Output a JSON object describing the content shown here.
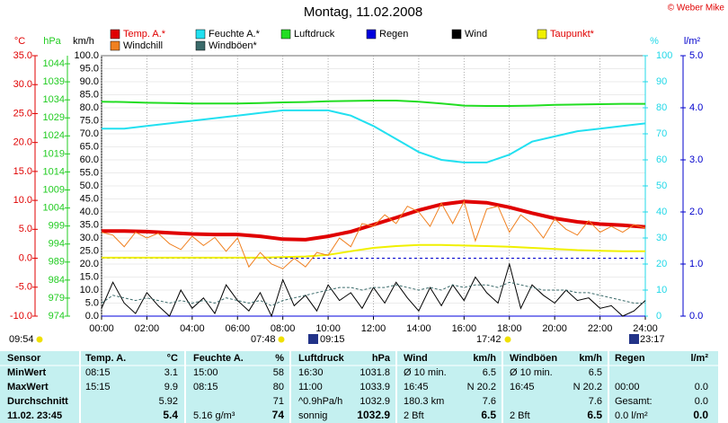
{
  "chart_data": {
    "type": "line",
    "title": "Montag, 11.02.2008",
    "copyright": "© Weber Mike",
    "xlim": [
      0,
      24
    ],
    "xticks": [
      {
        "value": 0,
        "label": "00:00"
      },
      {
        "value": 2,
        "label": "02:00"
      },
      {
        "value": 4,
        "label": "04:00"
      },
      {
        "value": 6,
        "label": "06:00"
      },
      {
        "value": 8,
        "label": "08:00"
      },
      {
        "value": 10,
        "label": "10:00"
      },
      {
        "value": 12,
        "label": "12:00"
      },
      {
        "value": 14,
        "label": "14:00"
      },
      {
        "value": 16,
        "label": "16:00"
      },
      {
        "value": 18,
        "label": "18:00"
      },
      {
        "value": 20,
        "label": "20:00"
      },
      {
        "value": 22,
        "label": "22:00"
      },
      {
        "value": 24,
        "label": "24:00"
      }
    ],
    "x": [
      0,
      1,
      2,
      3,
      4,
      5,
      6,
      7,
      8,
      9,
      10,
      11,
      12,
      13,
      14,
      15,
      16,
      17,
      18,
      19,
      20,
      21,
      22,
      23,
      24
    ],
    "grid": true,
    "axes": {
      "temp": {
        "label": "°C",
        "color": "#e00000",
        "ylim": [
          -10,
          35
        ],
        "yticks": [
          {
            "value": 35,
            "label": "35.0"
          },
          {
            "value": 30,
            "label": "30.0"
          },
          {
            "value": 25,
            "label": "25.0"
          },
          {
            "value": 20,
            "label": "20.0"
          },
          {
            "value": 15,
            "label": "15.0"
          },
          {
            "value": 10,
            "label": "10.0"
          },
          {
            "value": 5,
            "label": "5.0"
          },
          {
            "value": 0,
            "label": "0.0"
          },
          {
            "value": -5,
            "label": "-5.0"
          },
          {
            "value": -10,
            "label": "-10.0"
          }
        ]
      },
      "press": {
        "label": "hPa",
        "color": "#22cc22",
        "ylim": [
          974,
          1046.25
        ],
        "yticks": [
          1044,
          1039,
          1034,
          1029,
          1024,
          1019,
          1014,
          1009,
          1004,
          999,
          994,
          989,
          984,
          979,
          974
        ]
      },
      "wind": {
        "label": "km/h",
        "color": "#000000",
        "ylim": [
          0,
          100
        ],
        "yticks": [
          {
            "value": 100,
            "label": "100.0"
          },
          {
            "value": 95,
            "label": "95.0"
          },
          {
            "value": 90,
            "label": "90.0"
          },
          {
            "value": 85,
            "label": "85.0"
          },
          {
            "value": 80,
            "label": "80.0"
          },
          {
            "value": 75,
            "label": "75.0"
          },
          {
            "value": 70,
            "label": "70.0"
          },
          {
            "value": 65,
            "label": "65.0"
          },
          {
            "value": 60,
            "label": "60.0"
          },
          {
            "value": 55,
            "label": "55.0"
          },
          {
            "value": 50,
            "label": "50.0"
          },
          {
            "value": 45,
            "label": "45.0"
          },
          {
            "value": 40,
            "label": "40.0"
          },
          {
            "value": 35,
            "label": "35.0"
          },
          {
            "value": 30,
            "label": "30.0"
          },
          {
            "value": 25,
            "label": "25.0"
          },
          {
            "value": 20,
            "label": "20.0"
          },
          {
            "value": 15,
            "label": "15.0"
          },
          {
            "value": 10,
            "label": "10.0"
          },
          {
            "value": 5,
            "label": "5.0"
          },
          {
            "value": 0,
            "label": "0.0"
          }
        ]
      },
      "hum": {
        "label": "%",
        "color": "#22d8e8",
        "ylim": [
          0,
          100
        ],
        "yticks": [
          100,
          90,
          80,
          70,
          60,
          50,
          40,
          30,
          20,
          10,
          0
        ]
      },
      "rain": {
        "label": "l/m²",
        "color": "#0000cc",
        "ylim": [
          0,
          5
        ],
        "yticks": [
          {
            "value": 5,
            "label": "5.0"
          },
          {
            "value": 4,
            "label": "4.0"
          },
          {
            "value": 3,
            "label": "3.0"
          },
          {
            "value": 2,
            "label": "2.0"
          },
          {
            "value": 1,
            "label": "1.0"
          },
          {
            "value": 0,
            "label": "0.0"
          }
        ]
      }
    },
    "series": [
      {
        "name": "Temp. A.*",
        "color": "#e00000",
        "axis": "temp",
        "values": [
          4.7,
          4.7,
          4.6,
          4.4,
          4.2,
          4.1,
          4.1,
          3.8,
          3.3,
          3.2,
          3.8,
          4.6,
          5.8,
          7.0,
          8.3,
          9.3,
          9.8,
          9.6,
          8.8,
          7.8,
          6.9,
          6.3,
          5.9,
          5.7,
          5.4
        ]
      },
      {
        "name": "Feuchte A.*",
        "color": "#22e0f0",
        "axis": "hum",
        "values": [
          72,
          72,
          73,
          74,
          75,
          76,
          77,
          78,
          79,
          79,
          79,
          77,
          73,
          68,
          63,
          60,
          59,
          59,
          62,
          67,
          69,
          71,
          72,
          73,
          74
        ]
      },
      {
        "name": "Luftdruck",
        "color": "#22dd22",
        "axis": "press",
        "values": [
          1033.5,
          1033.4,
          1033.2,
          1033.1,
          1033.0,
          1033.0,
          1033.0,
          1033.1,
          1033.3,
          1033.4,
          1033.6,
          1033.7,
          1033.8,
          1033.8,
          1033.5,
          1033.0,
          1032.4,
          1032.3,
          1032.3,
          1032.4,
          1032.6,
          1032.7,
          1032.8,
          1032.9,
          1032.9
        ]
      },
      {
        "name": "Regen",
        "color": "#0000dd",
        "axis": "rain",
        "values": [
          0,
          0,
          0,
          0,
          0,
          0,
          0,
          0,
          0,
          0,
          0,
          0,
          0,
          0,
          0,
          0,
          0,
          0,
          0,
          0,
          0,
          0,
          0,
          0,
          0
        ]
      },
      {
        "name": "Wind",
        "color": "#000000",
        "axis": "wind",
        "x": [
          0,
          0.5,
          1,
          1.5,
          2,
          2.5,
          3,
          3.5,
          4,
          4.5,
          5,
          5.5,
          6,
          6.5,
          7,
          7.5,
          8,
          8.5,
          9,
          9.5,
          10,
          10.5,
          11,
          11.5,
          12,
          12.5,
          13,
          13.5,
          14,
          14.5,
          15,
          15.5,
          16,
          16.5,
          17,
          17.5,
          18,
          18.5,
          19,
          19.5,
          20,
          20.5,
          21,
          21.5,
          22,
          22.5,
          23,
          23.5,
          24
        ],
        "values": [
          3,
          13,
          5,
          1,
          9,
          4,
          0,
          10,
          3,
          7,
          1,
          12,
          6,
          2,
          9,
          0,
          14,
          4,
          8,
          2,
          12,
          6,
          9,
          3,
          11,
          5,
          13,
          7,
          2,
          11,
          4,
          12,
          6,
          15,
          9,
          5,
          20,
          3,
          12,
          8,
          5,
          10,
          6,
          7,
          3,
          4,
          0,
          2,
          6
        ]
      },
      {
        "name": "Taupunkt*",
        "color": "#f0f000",
        "axis": "temp",
        "values": [
          0.1,
          0.1,
          0.1,
          0.1,
          0.1,
          0.1,
          0.1,
          0.1,
          0.2,
          0.3,
          0.6,
          1.2,
          1.8,
          2.1,
          2.3,
          2.3,
          2.2,
          2.1,
          2.0,
          1.8,
          1.6,
          1.4,
          1.3,
          1.2,
          1.2
        ]
      },
      {
        "name": "Windchill",
        "color": "#f08020",
        "axis": "temp",
        "x": [
          0,
          0.5,
          1,
          1.5,
          2,
          2.5,
          3,
          3.5,
          4,
          4.5,
          5,
          5.5,
          6,
          6.5,
          7,
          7.5,
          8,
          8.5,
          9,
          9.5,
          10,
          10.5,
          11,
          11.5,
          12,
          12.5,
          13,
          13.5,
          14,
          14.5,
          15,
          15.5,
          16,
          16.5,
          17,
          17.5,
          18,
          18.5,
          19,
          19.5,
          20,
          20.5,
          21,
          21.5,
          22,
          22.5,
          23,
          23.5,
          24
        ],
        "values": [
          4.5,
          4.0,
          2.0,
          4.5,
          3.5,
          4.3,
          2.5,
          1.5,
          3.8,
          2.2,
          3.6,
          1.2,
          3.5,
          -1.5,
          1.0,
          -1.0,
          -1.8,
          0.0,
          -1.5,
          1.0,
          0.5,
          3.5,
          2.0,
          6.0,
          5.5,
          7.5,
          6.0,
          9.0,
          8.0,
          5.5,
          9.5,
          6.0,
          9.8,
          3.0,
          8.5,
          9.0,
          4.5,
          7.5,
          6.0,
          3.5,
          6.8,
          5.0,
          4.0,
          6.5,
          4.5,
          5.5,
          4.5,
          5.8,
          5.2
        ]
      },
      {
        "name": "Windböen*",
        "color": "#3a6a6a",
        "axis": "wind",
        "dashed": true,
        "x": [
          0,
          0.5,
          1,
          1.5,
          2,
          2.5,
          3,
          3.5,
          4,
          4.5,
          5,
          5.5,
          6,
          6.5,
          7,
          7.5,
          8,
          8.5,
          9,
          9.5,
          10,
          10.5,
          11,
          11.5,
          12,
          12.5,
          13,
          13.5,
          14,
          14.5,
          15,
          15.5,
          16,
          16.5,
          17,
          17.5,
          18,
          18.5,
          19,
          19.5,
          20,
          20.5,
          21,
          21.5,
          22,
          22.5,
          23,
          23.5,
          24
        ],
        "values": [
          5,
          8,
          7,
          6,
          7,
          6,
          5,
          6,
          5,
          6,
          5,
          7,
          6,
          5,
          6,
          4,
          6,
          7,
          8,
          9,
          10,
          11,
          11,
          10,
          11,
          11,
          12,
          11,
          10,
          11,
          10,
          12,
          11,
          12,
          12,
          11,
          13,
          12,
          11,
          10,
          10,
          10,
          9,
          9,
          8,
          7,
          6,
          5,
          5
        ]
      }
    ],
    "annotations": [
      "09:54",
      "07:48",
      "09:15",
      "17:42",
      "23:17"
    ]
  },
  "table": {
    "header": [
      "Sensor",
      "Temp. A.",
      "°C",
      "Feuchte A.",
      "%",
      "Luftdruck",
      "hPa",
      "Wind",
      "km/h",
      "Windböen",
      "km/h",
      "Regen",
      "l/m²"
    ],
    "rows": [
      [
        "MinWert",
        "08:15",
        "3.1",
        "15:00",
        "58",
        "16:30",
        "1031.8",
        "Ø 10 min.",
        "6.5",
        "Ø 10 min.",
        "6.5",
        null,
        null
      ],
      [
        "MaxWert",
        "15:15",
        "9.9",
        "08:15",
        "80",
        "11:00",
        "1033.9",
        "16:45",
        "N 20.2",
        "16:45",
        "N 20.2",
        "00:00",
        "0.0"
      ],
      [
        "Durchschnitt",
        null,
        "5.92",
        null,
        "71",
        "^0.9hPa/h",
        "1032.9",
        "180.3 km",
        "7.6",
        null,
        "7.6",
        "Gesamt:",
        "0.0"
      ],
      [
        "11.02. 23:45",
        null,
        "5.4",
        "5.16 g/m³",
        "74",
        "sonnig",
        "1032.9",
        "2 Bft",
        "6.5",
        "2 Bft",
        "6.5",
        "0.0 l/m²",
        "0.0"
      ]
    ]
  }
}
